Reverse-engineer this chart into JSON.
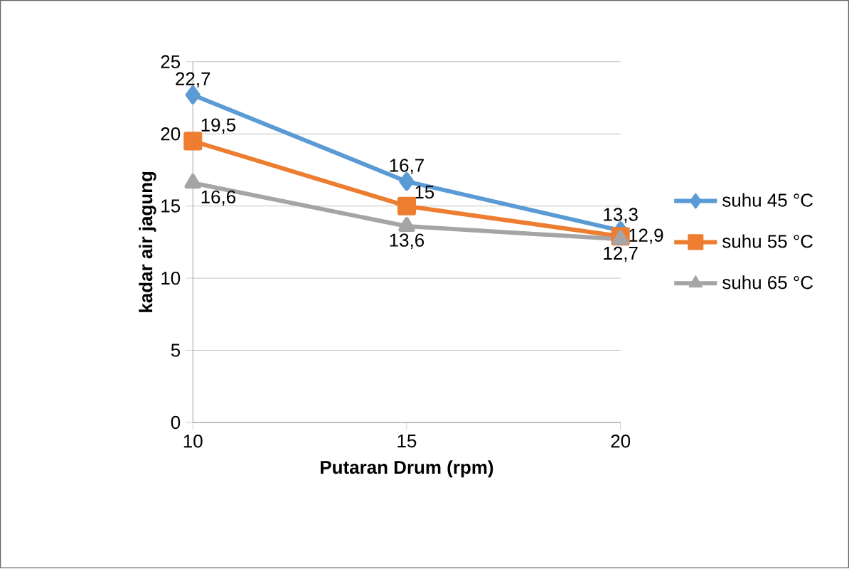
{
  "chart_data": {
    "type": "line",
    "xlabel": "Putaran Drum (rpm)",
    "ylabel": "kadar air jagung",
    "categories": [
      "10",
      "15",
      "20"
    ],
    "series": [
      {
        "name": "suhu 45 °C",
        "color": "#5b9bd5",
        "marker": "diamond",
        "values": [
          22.7,
          16.7,
          13.3
        ],
        "value_labels": [
          "22,7",
          "16,7",
          "13,3"
        ]
      },
      {
        "name": "suhu 55 °C",
        "color": "#ed7d31",
        "marker": "square",
        "values": [
          19.5,
          15,
          12.9
        ],
        "value_labels": [
          "19,5",
          "15",
          "12,9"
        ]
      },
      {
        "name": "suhu 65 °C",
        "color": "#a5a5a5",
        "marker": "triangle",
        "values": [
          16.6,
          13.6,
          12.7
        ],
        "value_labels": [
          "16,6",
          "13,6",
          "12,7"
        ]
      }
    ],
    "ylim": [
      0,
      25
    ],
    "yticks": [
      0,
      5,
      10,
      15,
      20,
      25
    ],
    "grid": "y",
    "legend": "right"
  }
}
